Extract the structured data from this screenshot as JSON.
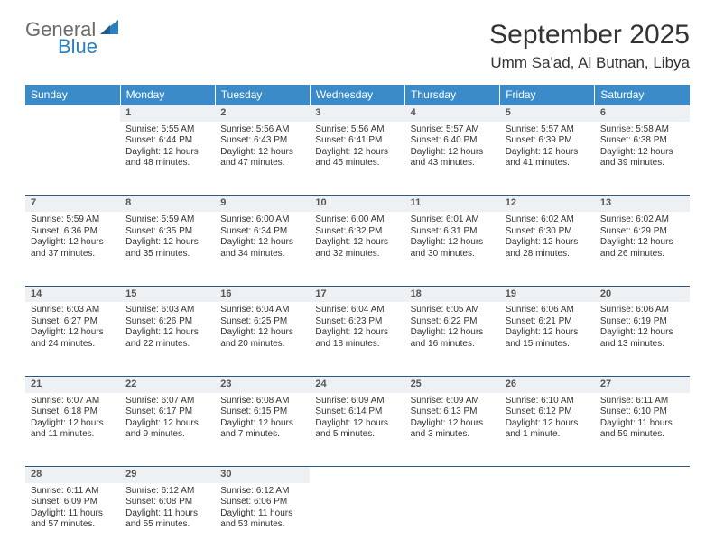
{
  "logo": {
    "general": "General",
    "blue": "Blue"
  },
  "title": "September 2025",
  "location": "Umm Sa'ad, Al Butnan, Libya",
  "header_bg": "#3b8bc9",
  "header_fg": "#ffffff",
  "daynum_bg": "#eef1f3",
  "rule_color": "#2c5a87",
  "weekdays": [
    "Sunday",
    "Monday",
    "Tuesday",
    "Wednesday",
    "Thursday",
    "Friday",
    "Saturday"
  ],
  "weeks": [
    {
      "nums": [
        "",
        "1",
        "2",
        "3",
        "4",
        "5",
        "6"
      ],
      "cells": [
        null,
        {
          "sr": "Sunrise: 5:55 AM",
          "ss": "Sunset: 6:44 PM",
          "d1": "Daylight: 12 hours",
          "d2": "and 48 minutes."
        },
        {
          "sr": "Sunrise: 5:56 AM",
          "ss": "Sunset: 6:43 PM",
          "d1": "Daylight: 12 hours",
          "d2": "and 47 minutes."
        },
        {
          "sr": "Sunrise: 5:56 AM",
          "ss": "Sunset: 6:41 PM",
          "d1": "Daylight: 12 hours",
          "d2": "and 45 minutes."
        },
        {
          "sr": "Sunrise: 5:57 AM",
          "ss": "Sunset: 6:40 PM",
          "d1": "Daylight: 12 hours",
          "d2": "and 43 minutes."
        },
        {
          "sr": "Sunrise: 5:57 AM",
          "ss": "Sunset: 6:39 PM",
          "d1": "Daylight: 12 hours",
          "d2": "and 41 minutes."
        },
        {
          "sr": "Sunrise: 5:58 AM",
          "ss": "Sunset: 6:38 PM",
          "d1": "Daylight: 12 hours",
          "d2": "and 39 minutes."
        }
      ]
    },
    {
      "nums": [
        "7",
        "8",
        "9",
        "10",
        "11",
        "12",
        "13"
      ],
      "cells": [
        {
          "sr": "Sunrise: 5:59 AM",
          "ss": "Sunset: 6:36 PM",
          "d1": "Daylight: 12 hours",
          "d2": "and 37 minutes."
        },
        {
          "sr": "Sunrise: 5:59 AM",
          "ss": "Sunset: 6:35 PM",
          "d1": "Daylight: 12 hours",
          "d2": "and 35 minutes."
        },
        {
          "sr": "Sunrise: 6:00 AM",
          "ss": "Sunset: 6:34 PM",
          "d1": "Daylight: 12 hours",
          "d2": "and 34 minutes."
        },
        {
          "sr": "Sunrise: 6:00 AM",
          "ss": "Sunset: 6:32 PM",
          "d1": "Daylight: 12 hours",
          "d2": "and 32 minutes."
        },
        {
          "sr": "Sunrise: 6:01 AM",
          "ss": "Sunset: 6:31 PM",
          "d1": "Daylight: 12 hours",
          "d2": "and 30 minutes."
        },
        {
          "sr": "Sunrise: 6:02 AM",
          "ss": "Sunset: 6:30 PM",
          "d1": "Daylight: 12 hours",
          "d2": "and 28 minutes."
        },
        {
          "sr": "Sunrise: 6:02 AM",
          "ss": "Sunset: 6:29 PM",
          "d1": "Daylight: 12 hours",
          "d2": "and 26 minutes."
        }
      ]
    },
    {
      "nums": [
        "14",
        "15",
        "16",
        "17",
        "18",
        "19",
        "20"
      ],
      "cells": [
        {
          "sr": "Sunrise: 6:03 AM",
          "ss": "Sunset: 6:27 PM",
          "d1": "Daylight: 12 hours",
          "d2": "and 24 minutes."
        },
        {
          "sr": "Sunrise: 6:03 AM",
          "ss": "Sunset: 6:26 PM",
          "d1": "Daylight: 12 hours",
          "d2": "and 22 minutes."
        },
        {
          "sr": "Sunrise: 6:04 AM",
          "ss": "Sunset: 6:25 PM",
          "d1": "Daylight: 12 hours",
          "d2": "and 20 minutes."
        },
        {
          "sr": "Sunrise: 6:04 AM",
          "ss": "Sunset: 6:23 PM",
          "d1": "Daylight: 12 hours",
          "d2": "and 18 minutes."
        },
        {
          "sr": "Sunrise: 6:05 AM",
          "ss": "Sunset: 6:22 PM",
          "d1": "Daylight: 12 hours",
          "d2": "and 16 minutes."
        },
        {
          "sr": "Sunrise: 6:06 AM",
          "ss": "Sunset: 6:21 PM",
          "d1": "Daylight: 12 hours",
          "d2": "and 15 minutes."
        },
        {
          "sr": "Sunrise: 6:06 AM",
          "ss": "Sunset: 6:19 PM",
          "d1": "Daylight: 12 hours",
          "d2": "and 13 minutes."
        }
      ]
    },
    {
      "nums": [
        "21",
        "22",
        "23",
        "24",
        "25",
        "26",
        "27"
      ],
      "cells": [
        {
          "sr": "Sunrise: 6:07 AM",
          "ss": "Sunset: 6:18 PM",
          "d1": "Daylight: 12 hours",
          "d2": "and 11 minutes."
        },
        {
          "sr": "Sunrise: 6:07 AM",
          "ss": "Sunset: 6:17 PM",
          "d1": "Daylight: 12 hours",
          "d2": "and 9 minutes."
        },
        {
          "sr": "Sunrise: 6:08 AM",
          "ss": "Sunset: 6:15 PM",
          "d1": "Daylight: 12 hours",
          "d2": "and 7 minutes."
        },
        {
          "sr": "Sunrise: 6:09 AM",
          "ss": "Sunset: 6:14 PM",
          "d1": "Daylight: 12 hours",
          "d2": "and 5 minutes."
        },
        {
          "sr": "Sunrise: 6:09 AM",
          "ss": "Sunset: 6:13 PM",
          "d1": "Daylight: 12 hours",
          "d2": "and 3 minutes."
        },
        {
          "sr": "Sunrise: 6:10 AM",
          "ss": "Sunset: 6:12 PM",
          "d1": "Daylight: 12 hours",
          "d2": "and 1 minute."
        },
        {
          "sr": "Sunrise: 6:11 AM",
          "ss": "Sunset: 6:10 PM",
          "d1": "Daylight: 11 hours",
          "d2": "and 59 minutes."
        }
      ]
    },
    {
      "nums": [
        "28",
        "29",
        "30",
        "",
        "",
        "",
        ""
      ],
      "cells": [
        {
          "sr": "Sunrise: 6:11 AM",
          "ss": "Sunset: 6:09 PM",
          "d1": "Daylight: 11 hours",
          "d2": "and 57 minutes."
        },
        {
          "sr": "Sunrise: 6:12 AM",
          "ss": "Sunset: 6:08 PM",
          "d1": "Daylight: 11 hours",
          "d2": "and 55 minutes."
        },
        {
          "sr": "Sunrise: 6:12 AM",
          "ss": "Sunset: 6:06 PM",
          "d1": "Daylight: 11 hours",
          "d2": "and 53 minutes."
        },
        null,
        null,
        null,
        null
      ]
    }
  ]
}
